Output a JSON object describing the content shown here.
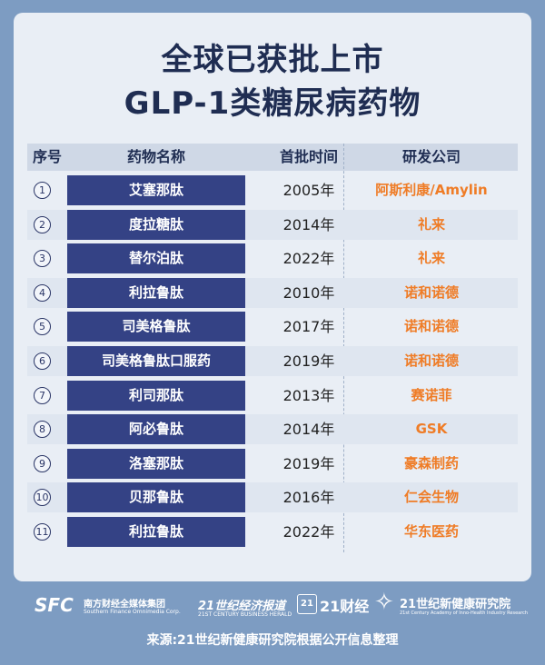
{
  "title_line1": "全球已获批上市",
  "title_line2": "GLP-1类糖尿病药物",
  "headers": {
    "index": "序号",
    "name": "药物名称",
    "year": "首批时间",
    "company": "研发公司"
  },
  "rows": [
    {
      "num": "1",
      "name": "艾塞那肽",
      "year": "2005年",
      "company": "阿斯利康/Amylin"
    },
    {
      "num": "2",
      "name": "度拉糖肽",
      "year": "2014年",
      "company": "礼来"
    },
    {
      "num": "3",
      "name": "替尔泊肽",
      "year": "2022年",
      "company": "礼来"
    },
    {
      "num": "4",
      "name": "利拉鲁肽",
      "year": "2010年",
      "company": "诺和诺德"
    },
    {
      "num": "5",
      "name": "司美格鲁肽",
      "year": "2017年",
      "company": "诺和诺德"
    },
    {
      "num": "6",
      "name": "司美格鲁肽口服药",
      "year": "2019年",
      "company": "诺和诺德"
    },
    {
      "num": "7",
      "name": "利司那肽",
      "year": "2013年",
      "company": "赛诺菲"
    },
    {
      "num": "8",
      "name": "阿必鲁肽",
      "year": "2014年",
      "company": "GSK"
    },
    {
      "num": "9",
      "name": "洛塞那肽",
      "year": "2019年",
      "company": "豪森制药"
    },
    {
      "num": "10",
      "name": "贝那鲁肽",
      "year": "2016年",
      "company": "仁会生物"
    },
    {
      "num": "11",
      "name": "利拉鲁肽",
      "year": "2022年",
      "company": "华东医药"
    }
  ],
  "footer": {
    "sfc_logo": "SFC",
    "sfc_name": "南方财经全媒体集团",
    "sfc_en": "Southern Finance Omnimedia Corp.",
    "herald_name": "21世纪经济报道",
    "herald_en": "21ST CENTURY BUSINESS HERALD",
    "caijing_icon": "21",
    "caijing_name": "21财经",
    "institute_name": "21世纪新健康研究院",
    "institute_en": "21st Century Academy of Inno-Health Industry Research",
    "source": "来源:21世纪新健康研究院根据公开信息整理"
  },
  "colors": {
    "background": "#7d9cc2",
    "card": "#e9eef5",
    "title": "#1f2d52",
    "name_cell": "#344285",
    "company_text": "#ef7c26"
  }
}
